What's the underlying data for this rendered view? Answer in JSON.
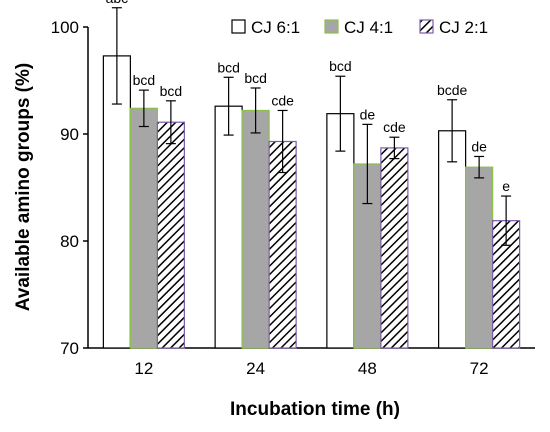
{
  "chart_data": {
    "type": "bar",
    "categories": [
      "12",
      "24",
      "48",
      "72"
    ],
    "series": [
      {
        "name": "CJ 6:1",
        "values": [
          97.3,
          92.6,
          91.9,
          90.3
        ],
        "errors": [
          4.5,
          2.7,
          3.5,
          2.9
        ],
        "labels": [
          "abc",
          "bcd",
          "bcd",
          "bcde"
        ],
        "fill": "#ffffff",
        "stroke": "#000000"
      },
      {
        "name": "CJ 4:1",
        "values": [
          92.4,
          92.2,
          87.2,
          86.9
        ],
        "errors": [
          1.7,
          2.1,
          3.7,
          1.0
        ],
        "labels": [
          "bcd",
          "bcd",
          "de",
          "de"
        ],
        "fill": "#a6a6a6",
        "stroke": "#8cc04a"
      },
      {
        "name": "CJ 2:1",
        "values": [
          91.1,
          89.3,
          88.7,
          81.9
        ],
        "errors": [
          2.0,
          2.9,
          1.0,
          2.3
        ],
        "labels": [
          "bcd",
          "cde",
          "cde",
          "e"
        ],
        "fill": "hatch",
        "stroke": "#7b5ca8"
      }
    ],
    "xlabel": "Incubation time (h)",
    "ylabel": "Available amino groups (%)",
    "ylim": [
      70,
      100
    ],
    "yticks": [
      70,
      80,
      90,
      100
    ],
    "grid": false,
    "legend_position": "top-right"
  }
}
